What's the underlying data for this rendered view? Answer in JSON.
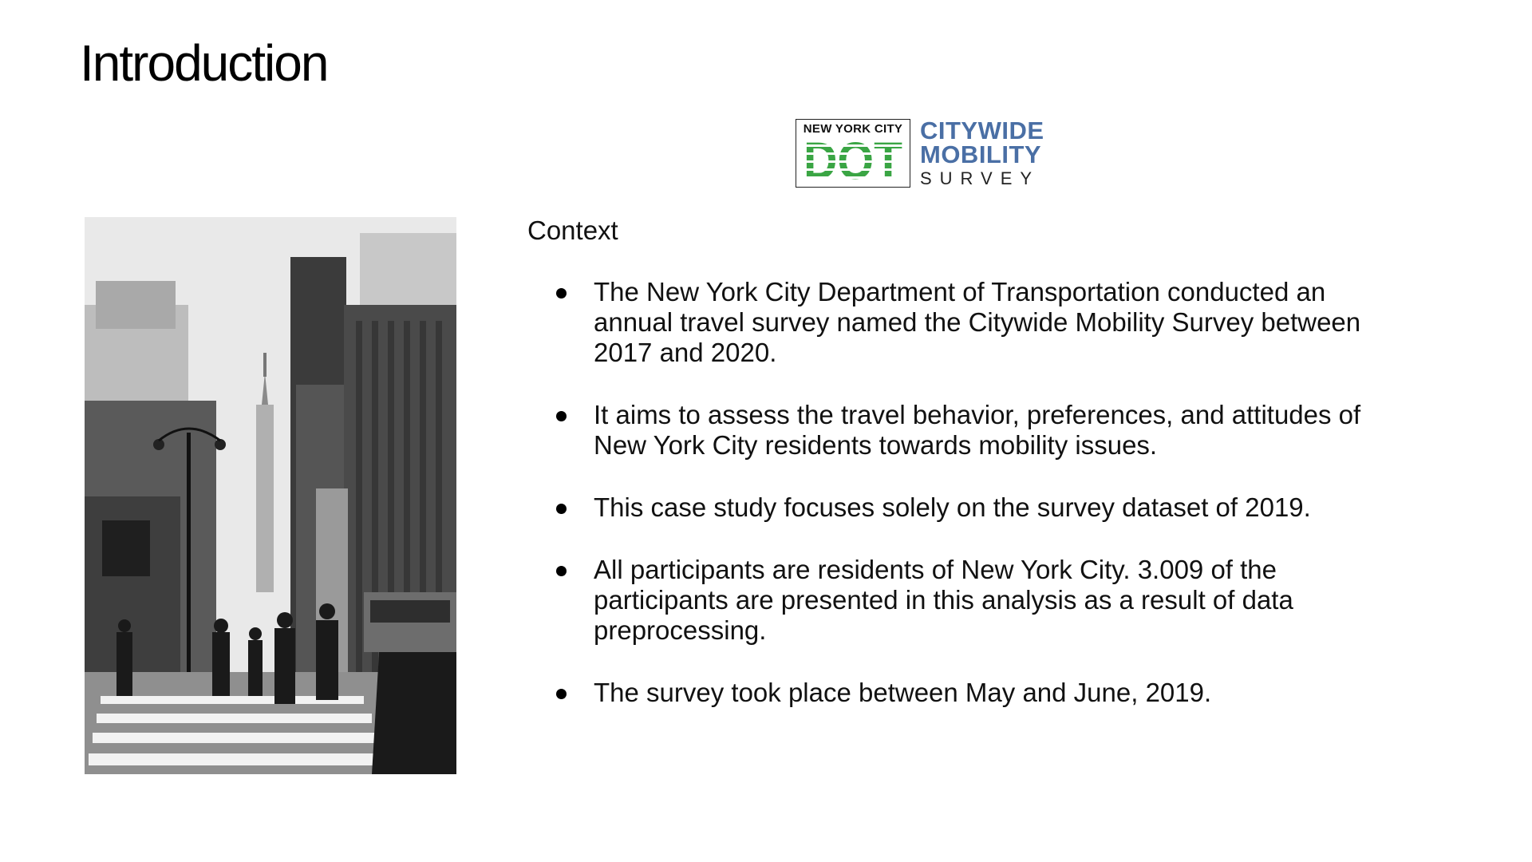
{
  "slide": {
    "title": "Introduction"
  },
  "logo": {
    "nyc_text": "NEW YORK CITY",
    "dot_text": "DOT",
    "line1": "CITYWIDE",
    "line2": "MOBILITY",
    "line3": "SURVEY",
    "colors": {
      "green": "#3aa544",
      "blue": "#4a6fa5"
    }
  },
  "photo": {
    "subject": "black-and-white-nyc-street-photo"
  },
  "content": {
    "heading": "Context",
    "bullets": [
      "The New York City Department of Transportation conducted an annual travel survey named the Citywide Mobility Survey between 2017 and 2020.",
      "It aims to assess the travel behavior, preferences, and attitudes of New York City residents towards mobility issues.",
      "This case study focuses solely on the survey dataset of 2019.",
      "All participants are residents of New York City. 3.009 of the participants are presented in this analysis as a result of data preprocessing.",
      "The survey took place between May and June, 2019."
    ]
  }
}
